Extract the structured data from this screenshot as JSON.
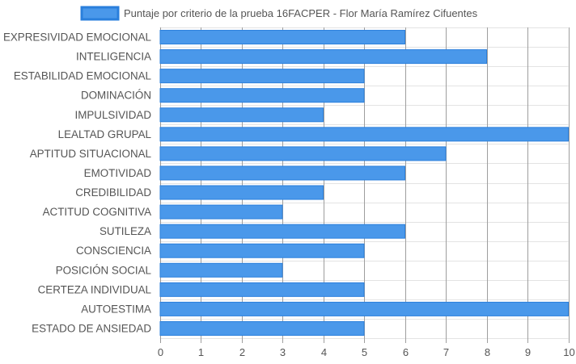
{
  "chart_data": {
    "type": "bar",
    "orientation": "horizontal",
    "title": "",
    "xlabel": "",
    "ylabel": "",
    "xlim": [
      0,
      10
    ],
    "x_ticks": [
      "0",
      "1",
      "2",
      "3",
      "4",
      "5",
      "6",
      "7",
      "8",
      "9",
      "10"
    ],
    "grid": true,
    "legend_position": "top-center",
    "categories": [
      "EXPRESIVIDAD EMOCIONAL",
      "INTELIGENCIA",
      "ESTABILIDAD EMOCIONAL",
      "DOMINACIÓN",
      "IMPULSIVIDAD",
      "LEALTAD GRUPAL",
      "APTITUD SITUACIONAL",
      "EMOTIVIDAD",
      "CREDIBILIDAD",
      "ACTITUD COGNITIVA",
      "SUTILEZA",
      "CONSCIENCIA",
      "POSICIÓN SOCIAL",
      "CERTEZA INDIVIDUAL",
      "AUTOESTIMA",
      "ESTADO DE ANSIEDAD"
    ],
    "series": [
      {
        "name": "Puntaje por criterio de la prueba 16FACPER - Flor María Ramírez Cifuentes",
        "color": "#4a98ea",
        "border_color": "#2a7fdc",
        "values": [
          6,
          8,
          5,
          5,
          4,
          10,
          7,
          6,
          4,
          3,
          6,
          5,
          3,
          5,
          10,
          5
        ]
      }
    ]
  }
}
